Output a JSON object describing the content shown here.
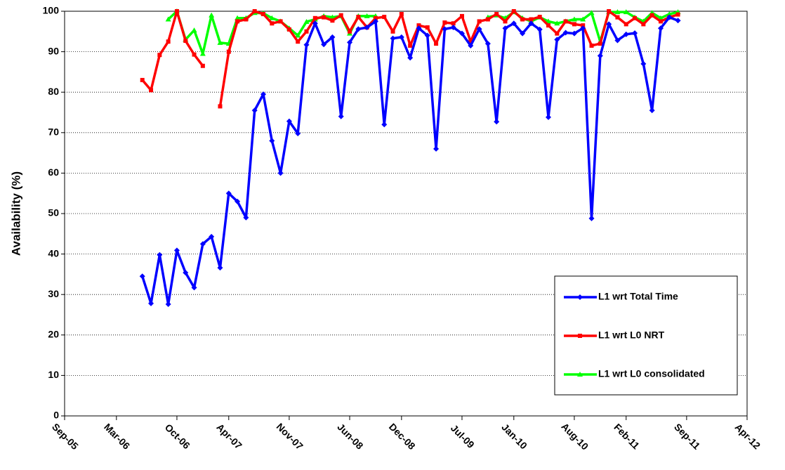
{
  "chart_data": {
    "type": "line",
    "y_label": "Availability (%)",
    "x": [
      "2006-06",
      "2006-07",
      "2006-08",
      "2006-09",
      "2006-10",
      "2006-11",
      "2006-12",
      "2007-01",
      "2007-02",
      "2007-03",
      "2007-04",
      "2007-05",
      "2007-06",
      "2007-07",
      "2007-08",
      "2007-09",
      "2007-10",
      "2007-11",
      "2007-12",
      "2008-01",
      "2008-02",
      "2008-03",
      "2008-04",
      "2008-05",
      "2008-06",
      "2008-07",
      "2008-08",
      "2008-09",
      "2008-10",
      "2008-11",
      "2008-12",
      "2009-01",
      "2009-02",
      "2009-03",
      "2009-04",
      "2009-05",
      "2009-06",
      "2009-07",
      "2009-08",
      "2009-09",
      "2009-10",
      "2009-11",
      "2009-12",
      "2010-01",
      "2010-02",
      "2010-03",
      "2010-04",
      "2010-05",
      "2010-06",
      "2010-07",
      "2010-08",
      "2010-09",
      "2010-10",
      "2010-11",
      "2010-12",
      "2011-01",
      "2011-02",
      "2011-03",
      "2011-04",
      "2011-05",
      "2011-06",
      "2011-07",
      "2011-08"
    ],
    "series": [
      {
        "name": "L1 wrt Total Time",
        "color": "#0000ff",
        "marker": "diamond",
        "values": [
          34.5,
          27.8,
          39.8,
          27.6,
          40.9,
          35.4,
          31.7,
          42.5,
          44.3,
          36.6,
          55,
          53,
          49,
          75.5,
          79.5,
          68,
          60,
          72.8,
          69.8,
          91.7,
          97,
          91.8,
          93.6,
          74,
          92.3,
          95.6,
          96,
          97.5,
          72,
          93.3,
          93.6,
          88.5,
          95.8,
          94,
          66,
          95.6,
          96,
          94.5,
          91.5,
          95.6,
          92,
          72.7,
          95.8,
          97,
          94.5,
          97,
          95.5,
          73.8,
          93,
          94.7,
          94.5,
          95.8,
          48.8,
          89,
          96.8,
          92.8,
          94.3,
          94.6,
          87,
          75.5,
          95.8,
          98.5,
          97.7
        ]
      },
      {
        "name": "L1 wrt L0 NRT",
        "color": "#ff0000",
        "marker": "square",
        "values": [
          83,
          80.5,
          89.2,
          92.5,
          100,
          92.7,
          89.3,
          86.5,
          null,
          76.5,
          90,
          97.5,
          98,
          100,
          99.3,
          97,
          97.5,
          95.5,
          92.5,
          95,
          98.3,
          98.5,
          97.7,
          99,
          95,
          98.6,
          96,
          98.3,
          98.6,
          95,
          99.3,
          91.5,
          96.5,
          96,
          92,
          97.2,
          97,
          98.8,
          92.5,
          97.5,
          98,
          99.3,
          97.5,
          100,
          98,
          98,
          98.6,
          96.5,
          94.5,
          97.5,
          96.8,
          96.5,
          91.5,
          92,
          100,
          98.5,
          96.8,
          98.3,
          96.8,
          99,
          97.5,
          98.5,
          99.2
        ]
      },
      {
        "name": "L1 wrt L0 consolidated",
        "color": "#00ff00",
        "marker": "triangle",
        "values": [
          null,
          null,
          null,
          98,
          100,
          93,
          95.3,
          89.5,
          99,
          92.2,
          92,
          98.3,
          98.3,
          99.6,
          99.5,
          98.3,
          97.5,
          95.8,
          94,
          97.4,
          98,
          98.8,
          98.5,
          98.8,
          94.5,
          98.8,
          98.8,
          98.8,
          null,
          null,
          null,
          null,
          null,
          null,
          null,
          null,
          null,
          null,
          null,
          null,
          98.5,
          99,
          98.3,
          99.8,
          98.3,
          97.5,
          98.5,
          97.5,
          97,
          97.5,
          98,
          98,
          99.6,
          92.5,
          99.8,
          99.8,
          99.8,
          98.5,
          97.5,
          99.6,
          98.3,
          99.3,
          99.8
        ]
      }
    ],
    "xlim": [
      "2005-09",
      "2012-04"
    ],
    "xticks": [
      {
        "value": "2005-09",
        "label": "Sep-05"
      },
      {
        "value": "2006-03",
        "label": "Mar-06"
      },
      {
        "value": "2006-10",
        "label": "Oct-06"
      },
      {
        "value": "2007-04",
        "label": "Apr-07"
      },
      {
        "value": "2007-11",
        "label": "Nov-07"
      },
      {
        "value": "2008-06",
        "label": "Jun-08"
      },
      {
        "value": "2008-12",
        "label": "Dec-08"
      },
      {
        "value": "2009-07",
        "label": "Jul-09"
      },
      {
        "value": "2010-01",
        "label": "Jan-10"
      },
      {
        "value": "2010-08",
        "label": "Aug-10"
      },
      {
        "value": "2011-02",
        "label": "Feb-11"
      },
      {
        "value": "2011-09",
        "label": "Sep-11"
      },
      {
        "value": "2012-04",
        "label": "Apr-12"
      }
    ],
    "ylim": [
      0,
      100
    ],
    "yticks": [
      0,
      10,
      20,
      30,
      40,
      50,
      60,
      70,
      80,
      90,
      100
    ],
    "grid": true
  }
}
